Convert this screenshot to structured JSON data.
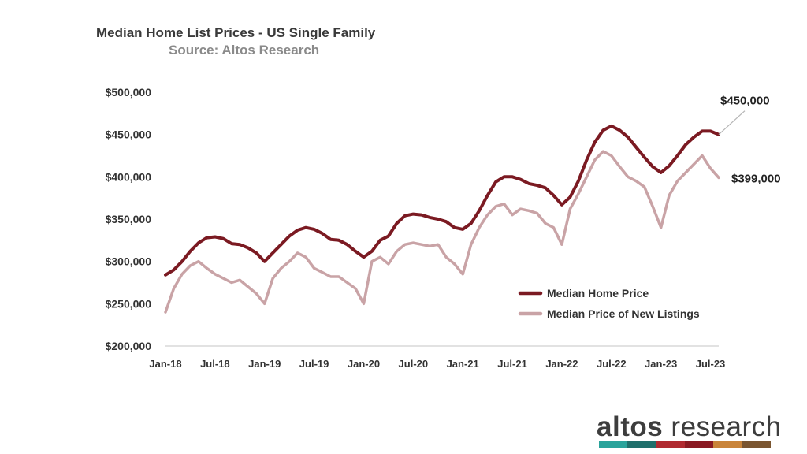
{
  "chart_data": {
    "type": "line",
    "title": "Median Home List Prices - US Single Family",
    "subtitle": "Source: Altos Research",
    "ylim": [
      200000,
      500000
    ],
    "y_ticks": [
      "$200,000",
      "$250,000",
      "$300,000",
      "$350,000",
      "$400,000",
      "$450,000",
      "$500,000"
    ],
    "x_tick_labels": [
      "Jan-18",
      "Jul-18",
      "Jan-19",
      "Jul-19",
      "Jan-20",
      "Jul-20",
      "Jan-21",
      "Jul-21",
      "Jan-22",
      "Jul-22",
      "Jan-23",
      "Jul-23"
    ],
    "x_range": [
      "2018-01",
      "2023-08"
    ],
    "grid": false,
    "legend_position": "lower-right",
    "series": [
      {
        "name": "Median Home Price",
        "color": "#7b1a22",
        "points": [
          [
            "2018-01",
            284000
          ],
          [
            "2018-02",
            290000
          ],
          [
            "2018-03",
            300000
          ],
          [
            "2018-04",
            312000
          ],
          [
            "2018-05",
            322000
          ],
          [
            "2018-06",
            328000
          ],
          [
            "2018-07",
            329000
          ],
          [
            "2018-08",
            327000
          ],
          [
            "2018-09",
            321000
          ],
          [
            "2018-10",
            320000
          ],
          [
            "2018-11",
            316000
          ],
          [
            "2018-12",
            310000
          ],
          [
            "2019-01",
            300000
          ],
          [
            "2019-02",
            310000
          ],
          [
            "2019-03",
            320000
          ],
          [
            "2019-04",
            330000
          ],
          [
            "2019-05",
            337000
          ],
          [
            "2019-06",
            340000
          ],
          [
            "2019-07",
            338000
          ],
          [
            "2019-08",
            333000
          ],
          [
            "2019-09",
            326000
          ],
          [
            "2019-10",
            325000
          ],
          [
            "2019-11",
            320000
          ],
          [
            "2019-12",
            312000
          ],
          [
            "2020-01",
            305000
          ],
          [
            "2020-02",
            312000
          ],
          [
            "2020-03",
            325000
          ],
          [
            "2020-04",
            330000
          ],
          [
            "2020-05",
            345000
          ],
          [
            "2020-06",
            354000
          ],
          [
            "2020-07",
            356000
          ],
          [
            "2020-08",
            355000
          ],
          [
            "2020-09",
            352000
          ],
          [
            "2020-10",
            350000
          ],
          [
            "2020-11",
            347000
          ],
          [
            "2020-12",
            340000
          ],
          [
            "2021-01",
            338000
          ],
          [
            "2021-02",
            345000
          ],
          [
            "2021-03",
            360000
          ],
          [
            "2021-04",
            378000
          ],
          [
            "2021-05",
            394000
          ],
          [
            "2021-06",
            400000
          ],
          [
            "2021-07",
            400000
          ],
          [
            "2021-08",
            397000
          ],
          [
            "2021-09",
            392000
          ],
          [
            "2021-10",
            390000
          ],
          [
            "2021-11",
            387000
          ],
          [
            "2021-12",
            378000
          ],
          [
            "2022-01",
            367000
          ],
          [
            "2022-02",
            376000
          ],
          [
            "2022-03",
            395000
          ],
          [
            "2022-04",
            420000
          ],
          [
            "2022-05",
            441000
          ],
          [
            "2022-06",
            455000
          ],
          [
            "2022-07",
            460000
          ],
          [
            "2022-08",
            455000
          ],
          [
            "2022-09",
            447000
          ],
          [
            "2022-10",
            435000
          ],
          [
            "2022-11",
            423000
          ],
          [
            "2022-12",
            412000
          ],
          [
            "2023-01",
            405000
          ],
          [
            "2023-02",
            413000
          ],
          [
            "2023-03",
            425000
          ],
          [
            "2023-04",
            438000
          ],
          [
            "2023-05",
            447000
          ],
          [
            "2023-06",
            454000
          ],
          [
            "2023-07",
            454000
          ],
          [
            "2023-08",
            450000
          ]
        ]
      },
      {
        "name": "Median Price of New Listings",
        "color": "#c9a3a6",
        "points": [
          [
            "2018-01",
            240000
          ],
          [
            "2018-02",
            268000
          ],
          [
            "2018-03",
            285000
          ],
          [
            "2018-04",
            295000
          ],
          [
            "2018-05",
            300000
          ],
          [
            "2018-06",
            292000
          ],
          [
            "2018-07",
            285000
          ],
          [
            "2018-08",
            280000
          ],
          [
            "2018-09",
            275000
          ],
          [
            "2018-10",
            278000
          ],
          [
            "2018-11",
            270000
          ],
          [
            "2018-12",
            262000
          ],
          [
            "2019-01",
            250000
          ],
          [
            "2019-02",
            280000
          ],
          [
            "2019-03",
            292000
          ],
          [
            "2019-04",
            300000
          ],
          [
            "2019-05",
            310000
          ],
          [
            "2019-06",
            305000
          ],
          [
            "2019-07",
            292000
          ],
          [
            "2019-08",
            287000
          ],
          [
            "2019-09",
            282000
          ],
          [
            "2019-10",
            282000
          ],
          [
            "2019-11",
            275000
          ],
          [
            "2019-12",
            268000
          ],
          [
            "2020-01",
            250000
          ],
          [
            "2020-02",
            300000
          ],
          [
            "2020-03",
            305000
          ],
          [
            "2020-04",
            297000
          ],
          [
            "2020-05",
            312000
          ],
          [
            "2020-06",
            320000
          ],
          [
            "2020-07",
            322000
          ],
          [
            "2020-08",
            320000
          ],
          [
            "2020-09",
            318000
          ],
          [
            "2020-10",
            320000
          ],
          [
            "2020-11",
            305000
          ],
          [
            "2020-12",
            297000
          ],
          [
            "2021-01",
            285000
          ],
          [
            "2021-02",
            320000
          ],
          [
            "2021-03",
            340000
          ],
          [
            "2021-04",
            355000
          ],
          [
            "2021-05",
            365000
          ],
          [
            "2021-06",
            368000
          ],
          [
            "2021-07",
            355000
          ],
          [
            "2021-08",
            362000
          ],
          [
            "2021-09",
            360000
          ],
          [
            "2021-10",
            357000
          ],
          [
            "2021-11",
            345000
          ],
          [
            "2021-12",
            340000
          ],
          [
            "2022-01",
            320000
          ],
          [
            "2022-02",
            362000
          ],
          [
            "2022-03",
            380000
          ],
          [
            "2022-04",
            400000
          ],
          [
            "2022-05",
            420000
          ],
          [
            "2022-06",
            430000
          ],
          [
            "2022-07",
            425000
          ],
          [
            "2022-08",
            412000
          ],
          [
            "2022-09",
            400000
          ],
          [
            "2022-10",
            395000
          ],
          [
            "2022-11",
            388000
          ],
          [
            "2022-12",
            365000
          ],
          [
            "2023-01",
            340000
          ],
          [
            "2023-02",
            378000
          ],
          [
            "2023-03",
            395000
          ],
          [
            "2023-04",
            405000
          ],
          [
            "2023-05",
            415000
          ],
          [
            "2023-06",
            425000
          ],
          [
            "2023-07",
            410000
          ],
          [
            "2023-08",
            399000
          ]
        ]
      }
    ],
    "annotations": [
      {
        "series": 0,
        "label": "$450,000"
      },
      {
        "series": 1,
        "label": "$399,000"
      }
    ]
  },
  "brand": {
    "name_bold": "altos",
    "name_light": " research",
    "stripe_colors": [
      "#2aa39b",
      "#1f6f6b",
      "#b02a30",
      "#8a1a22",
      "#c9843a",
      "#7a5530"
    ]
  }
}
